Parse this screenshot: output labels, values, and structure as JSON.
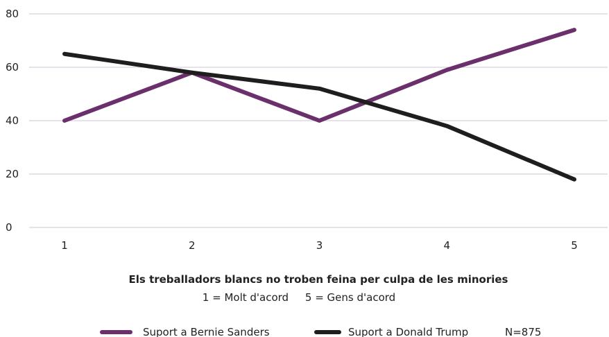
{
  "chart_data": {
    "type": "line",
    "x": [
      1,
      2,
      3,
      4,
      5
    ],
    "series": [
      {
        "name": "Suport a Bernie Sanders",
        "values": [
          40,
          58,
          40,
          59,
          74
        ],
        "color": "#6b2f6b"
      },
      {
        "name": "Suport a Donald Trump",
        "values": [
          65,
          58,
          52,
          38,
          18
        ],
        "color": "#1e1e1e"
      }
    ],
    "title": "",
    "xlabel": "Els treballadors blancs no troben feina per culpa de les minories",
    "xlabel_note": "1 = Molt d'acord     5 = Gens d'acord",
    "ylabel": "",
    "ylim": [
      0,
      80
    ],
    "yticks": [
      0,
      20,
      40,
      60,
      80
    ],
    "xticks": [
      1,
      2,
      3,
      4,
      5
    ],
    "grid": true,
    "legend_position": "bottom",
    "sample_note": "N=875",
    "grid_color": "#cfc6d6"
  }
}
